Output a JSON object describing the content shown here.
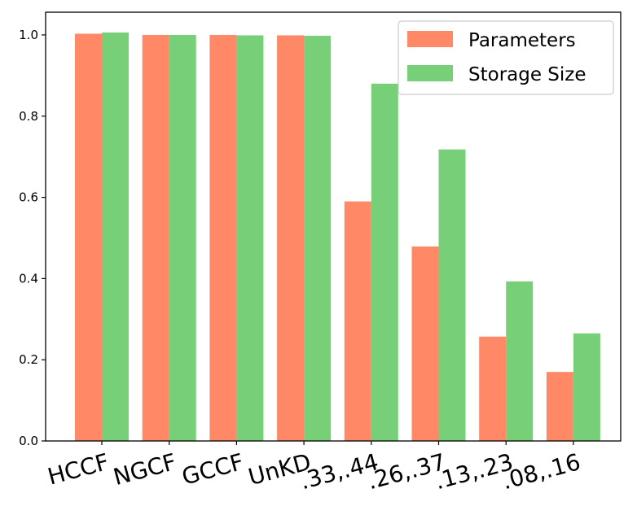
{
  "chart_data": {
    "type": "bar",
    "categories": [
      "HCCF",
      "NGCF",
      "GCCF",
      "UnKD",
      ".33,.44",
      ".26,.37",
      ".13,.23",
      ".08,.16"
    ],
    "series": [
      {
        "name": "Parameters",
        "color": "#FF8866",
        "values": [
          1.003,
          1.0,
          1.0,
          0.999,
          0.59,
          0.479,
          0.257,
          0.17
        ]
      },
      {
        "name": "Storage Size",
        "color": "#77D077",
        "values": [
          1.006,
          1.0,
          0.999,
          0.998,
          0.88,
          0.718,
          0.393,
          0.265
        ]
      }
    ],
    "yticks": [
      "0.0",
      "0.2",
      "0.4",
      "0.6",
      "0.8",
      "1.0"
    ],
    "ylim": [
      0,
      1.056
    ],
    "legend_position": "top-right",
    "grid": false
  }
}
